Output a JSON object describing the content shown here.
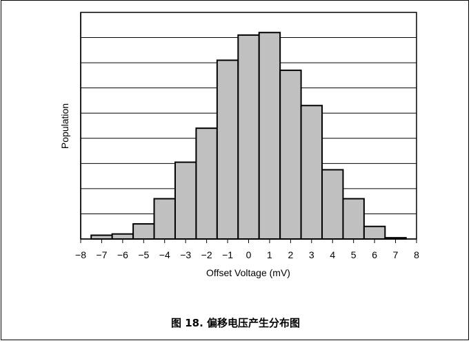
{
  "figure": {
    "caption": "图 18. 偏移电压产生分布图"
  },
  "chart_data": {
    "type": "bar",
    "xlabel": "Offset Voltage (mV)",
    "ylabel": "Population",
    "x_tick_labels": [
      "−8",
      "−7",
      "−6",
      "−5",
      "−4",
      "−3",
      "−2",
      "−1",
      "0",
      "1",
      "2",
      "3",
      "4",
      "5",
      "6",
      "7",
      "8"
    ],
    "x_ticks": [
      -8,
      -7,
      -6,
      -5,
      -4,
      -3,
      -2,
      -1,
      0,
      1,
      2,
      3,
      4,
      5,
      6,
      7,
      8
    ],
    "xlim": [
      -8,
      8
    ],
    "ylim": [
      0,
      9
    ],
    "y_gridlines": 9,
    "y_tick_labels": "none",
    "grid": "horizontal",
    "bin_width": 1,
    "bin_centers": [
      -7,
      -6,
      -5,
      -4,
      -3,
      -2,
      -1,
      0,
      1,
      2,
      3,
      4,
      5,
      6,
      7
    ],
    "values": [
      0.15,
      0.2,
      0.6,
      1.6,
      3.05,
      4.4,
      7.1,
      8.1,
      8.2,
      6.7,
      5.3,
      2.75,
      1.6,
      0.5,
      0.05
    ],
    "bar_color": "#c0c0c0",
    "edge_color": "#000000"
  }
}
